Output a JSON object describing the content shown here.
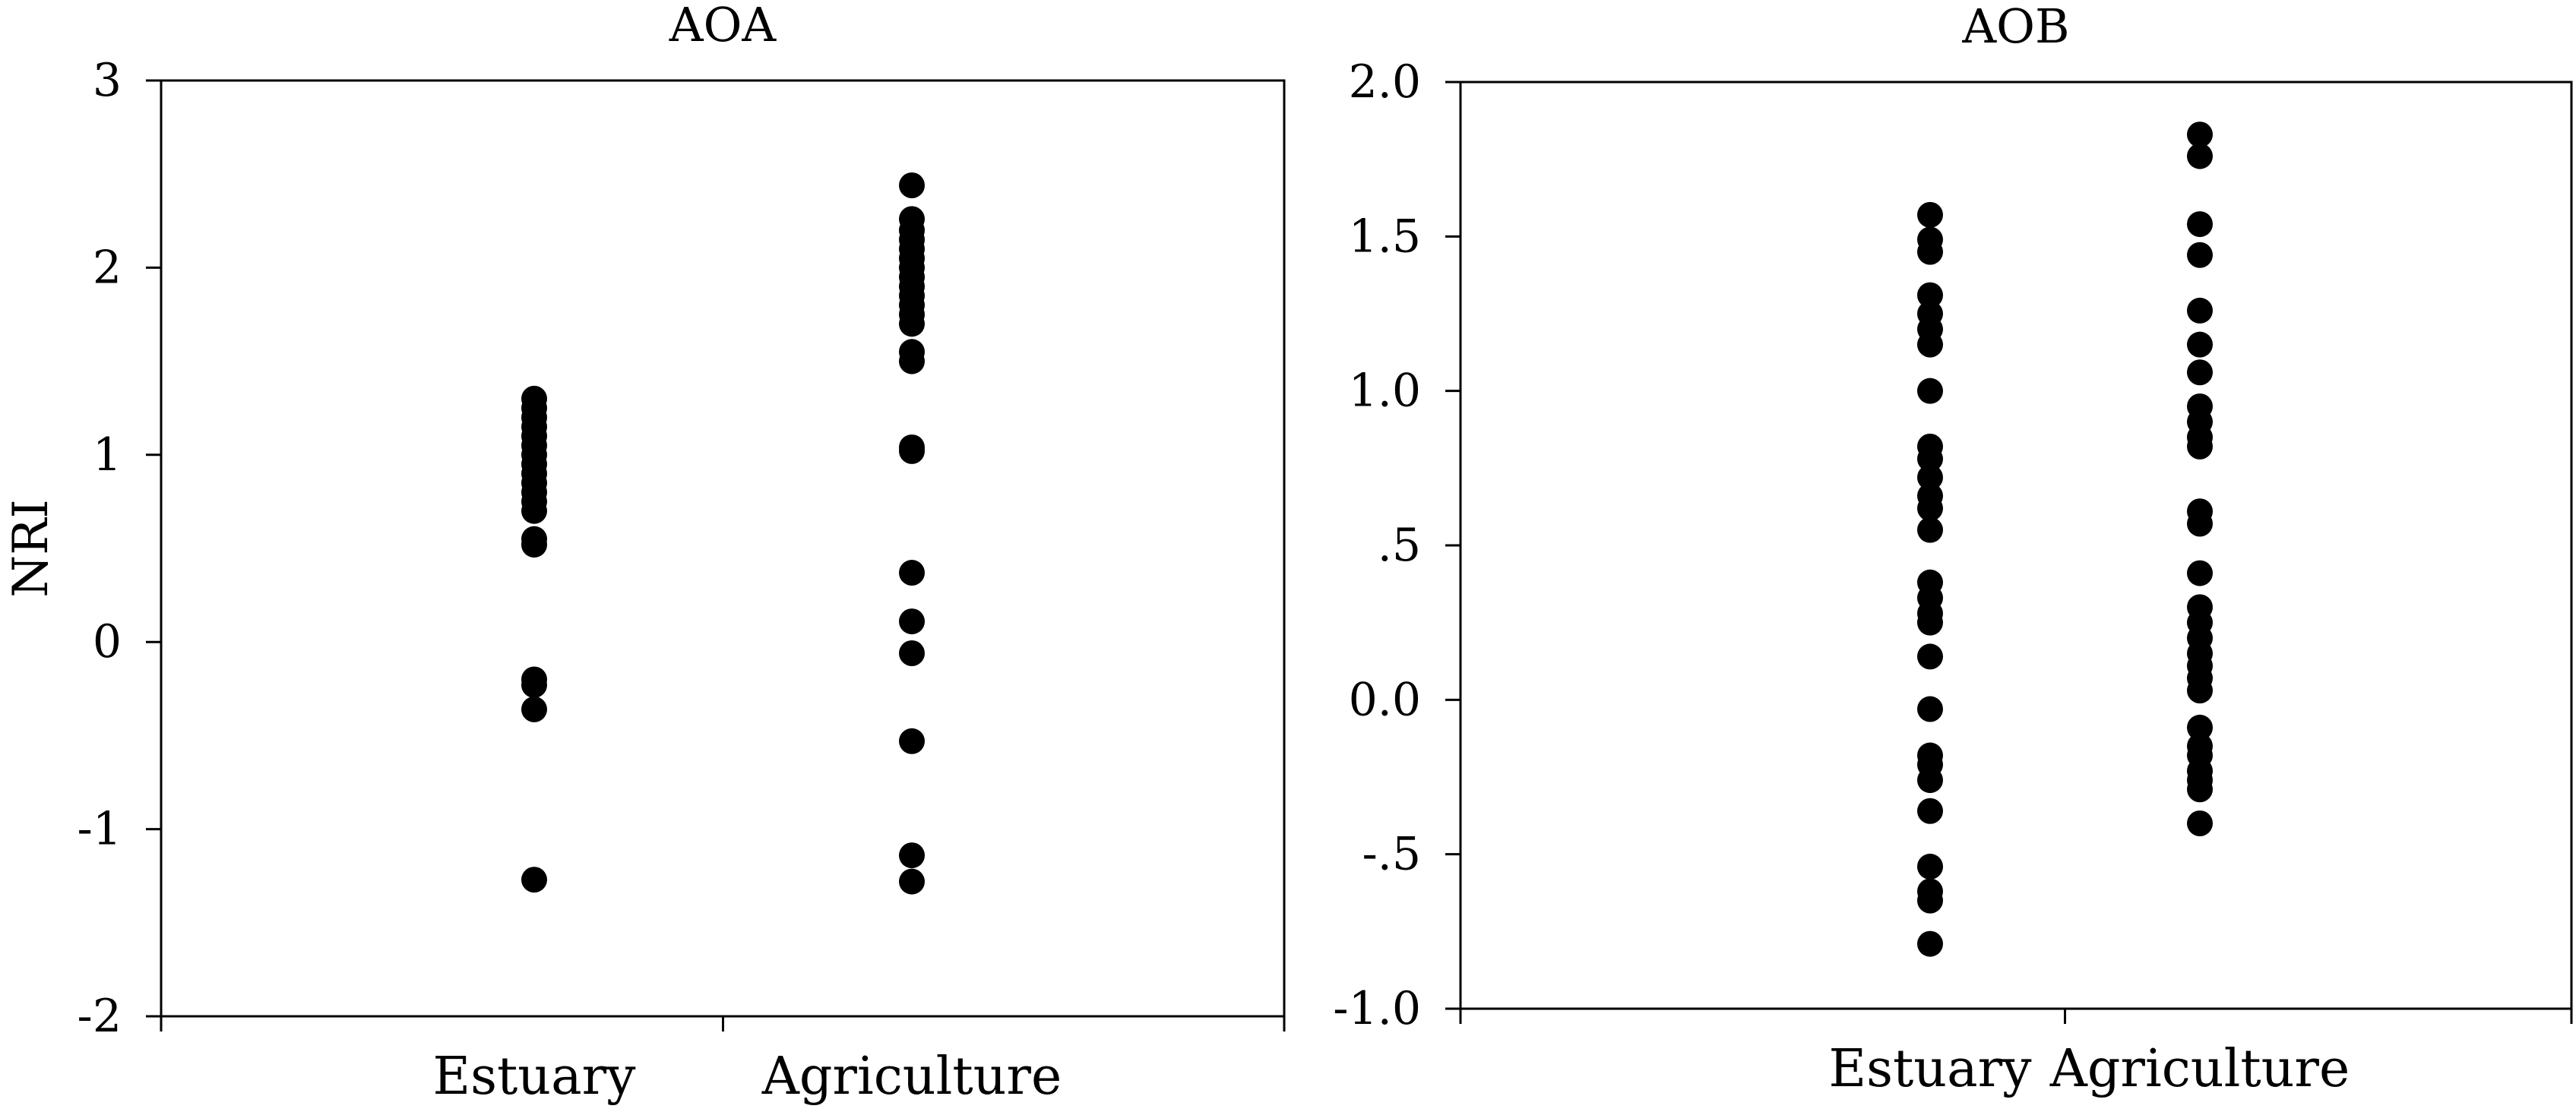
{
  "chart_data": [
    {
      "type": "scatter",
      "title": "AOA",
      "xlabel": "",
      "ylabel": "NRI",
      "ylim": [
        -2,
        3
      ],
      "yticks": [
        -2,
        -1,
        0,
        1,
        2,
        3
      ],
      "ytick_labels": [
        "-2",
        "-1",
        "0",
        "1",
        "2",
        "3"
      ],
      "categories": [
        "Estuary",
        "Agriculture"
      ],
      "grid": false,
      "marker_color": "#000000",
      "series": [
        {
          "category": "Estuary",
          "values": [
            1.3,
            1.25,
            1.2,
            1.15,
            1.1,
            1.05,
            1.0,
            0.95,
            0.9,
            0.85,
            0.8,
            0.75,
            0.7,
            0.55,
            0.52,
            -0.2,
            -0.23,
            -0.36,
            -1.27
          ]
        },
        {
          "category": "Agriculture",
          "values": [
            2.44,
            2.26,
            2.2,
            2.15,
            2.1,
            2.05,
            2.0,
            1.95,
            1.9,
            1.85,
            1.8,
            1.75,
            1.7,
            1.55,
            1.5,
            1.04,
            1.02,
            0.37,
            0.11,
            -0.06,
            -0.53,
            -1.14,
            -1.28
          ]
        }
      ]
    },
    {
      "type": "scatter",
      "title": "AOB",
      "xlabel": "",
      "ylabel": "",
      "ylim": [
        -1.0,
        2.0
      ],
      "yticks": [
        -1.0,
        -0.5,
        0.0,
        0.5,
        1.0,
        1.5,
        2.0
      ],
      "ytick_labels": [
        "-1.0",
        "-.5",
        "0.0",
        ".5",
        "1.0",
        "1.5",
        "2.0"
      ],
      "categories": [
        "Estuary",
        "Agriculture"
      ],
      "grid": false,
      "marker_color": "#000000",
      "series": [
        {
          "category": "Estuary",
          "values": [
            1.57,
            1.49,
            1.45,
            1.31,
            1.25,
            1.2,
            1.15,
            1.0,
            0.82,
            0.78,
            0.72,
            0.66,
            0.62,
            0.55,
            0.38,
            0.33,
            0.28,
            0.25,
            0.14,
            -0.03,
            -0.18,
            -0.21,
            -0.26,
            -0.36,
            -0.54,
            -0.62,
            -0.65,
            -0.79
          ]
        },
        {
          "category": "Agriculture",
          "values": [
            1.83,
            1.76,
            1.54,
            1.44,
            1.26,
            1.15,
            1.06,
            0.95,
            0.9,
            0.85,
            0.82,
            0.61,
            0.57,
            0.41,
            0.3,
            0.25,
            0.2,
            0.15,
            0.11,
            0.07,
            0.03,
            -0.09,
            -0.15,
            -0.18,
            -0.23,
            -0.26,
            -0.29,
            -0.4
          ]
        }
      ]
    }
  ]
}
